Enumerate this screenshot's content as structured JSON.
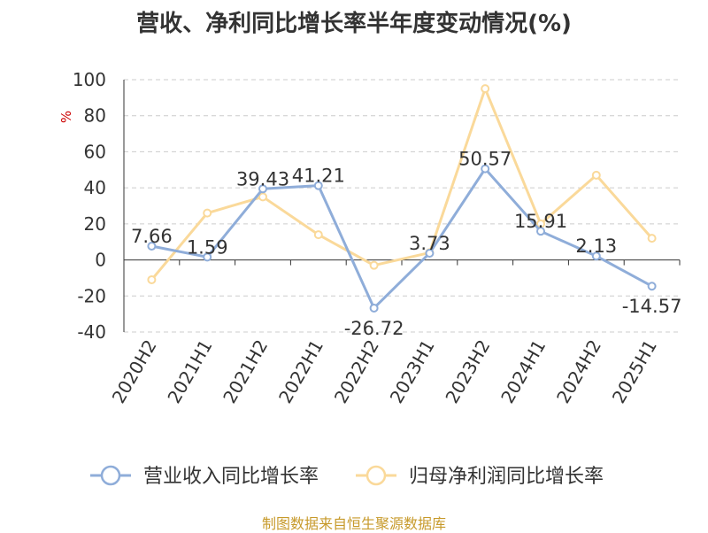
{
  "title": "营收、净利同比增长率半年度变动情况(%)",
  "source": "制图数据来自恒生聚源数据库",
  "chart_data": {
    "type": "line",
    "ylabel": "%",
    "ylim": [
      -40,
      100
    ],
    "yticks": [
      100,
      80,
      60,
      40,
      20,
      0,
      -20,
      -40
    ],
    "grid": true,
    "legend_position": "bottom",
    "categories": [
      "2020H2",
      "2021H1",
      "2021H2",
      "2022H1",
      "2022H2",
      "2023H1",
      "2023H2",
      "2024H1",
      "2024H2",
      "2025H1"
    ],
    "series": [
      {
        "name": "营业收入同比增长率",
        "color": "#8fadd9",
        "values": [
          7.66,
          1.59,
          39.43,
          41.21,
          -26.72,
          3.73,
          50.57,
          15.91,
          2.13,
          -14.57
        ],
        "labels": [
          "7.66",
          "1.59",
          "39.43",
          "41.21",
          "-26.72",
          "3.73",
          "50.57",
          "15.91",
          "2.13",
          "-14.57"
        ]
      },
      {
        "name": "归母净利润同比增长率",
        "color": "#fad99a",
        "values": [
          -11,
          26,
          35,
          14,
          -3,
          4,
          95,
          20,
          47,
          12
        ]
      }
    ]
  }
}
